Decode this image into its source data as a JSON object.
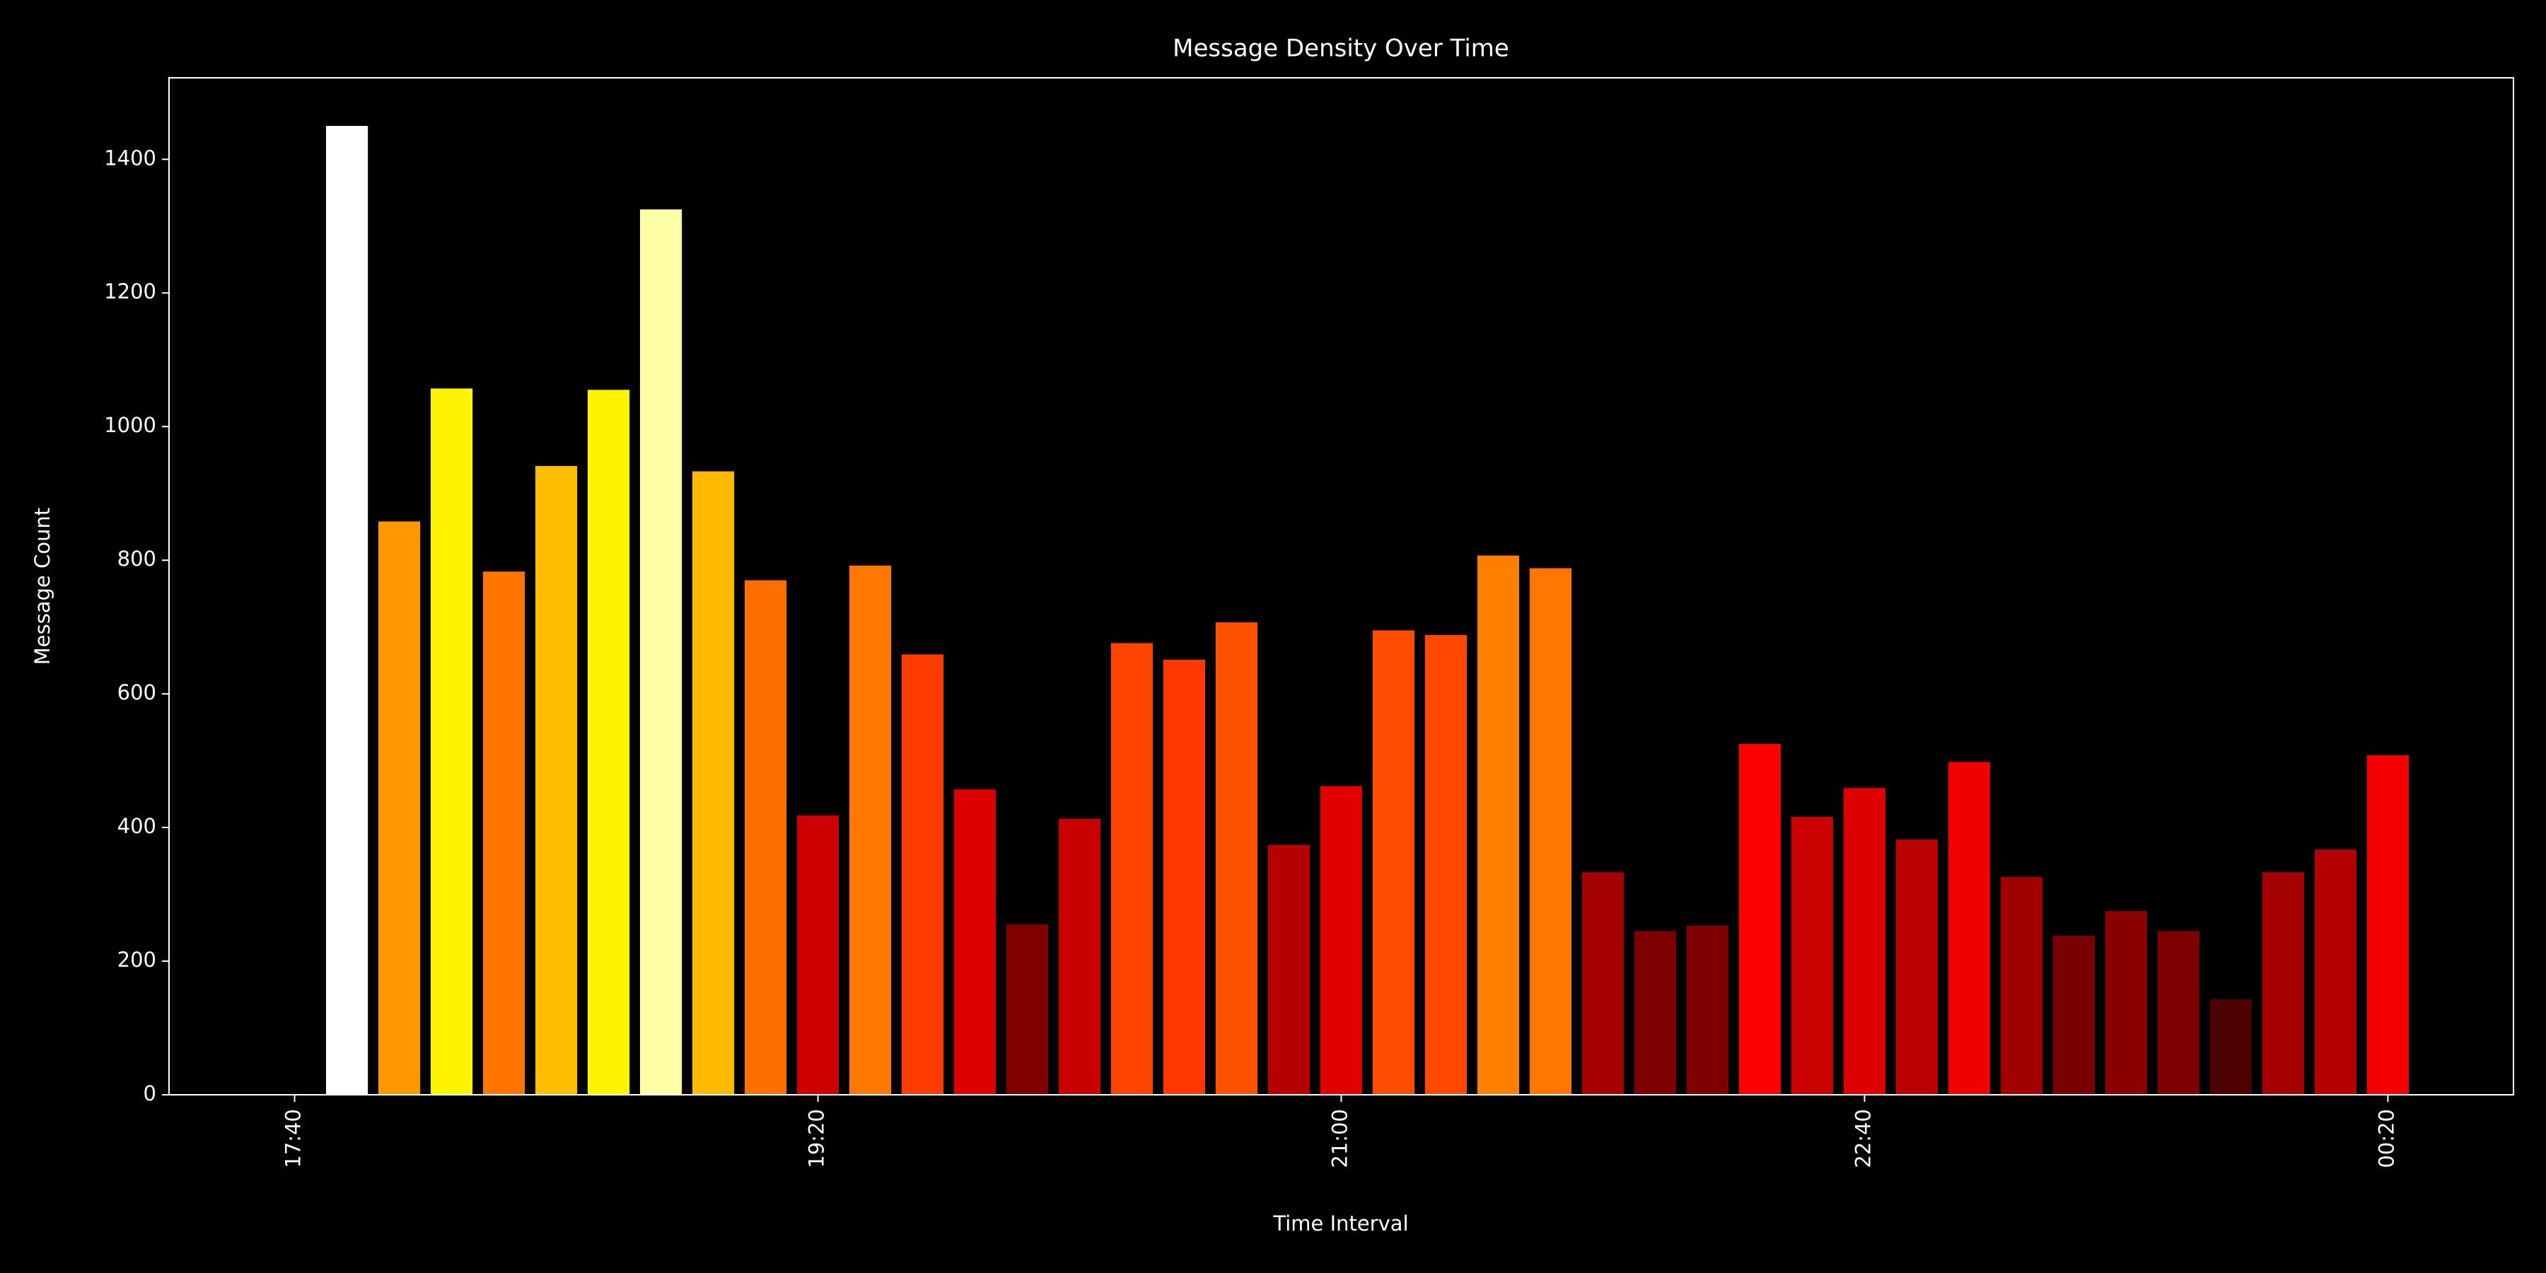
{
  "chart_data": {
    "type": "bar",
    "title": "Message Density Over Time",
    "x_label": "Time Interval",
    "y_label": "Message Count",
    "x": [
      "17:50",
      "18:00",
      "18:10",
      "18:20",
      "18:30",
      "18:40",
      "18:50",
      "19:00",
      "19:10",
      "19:20",
      "19:30",
      "19:40",
      "19:50",
      "20:00",
      "20:10",
      "20:20",
      "20:30",
      "20:40",
      "20:50",
      "21:00",
      "21:10",
      "21:20",
      "21:30",
      "21:40",
      "21:50",
      "22:00",
      "22:10",
      "22:20",
      "22:30",
      "22:40",
      "22:50",
      "23:00",
      "23:10",
      "23:20",
      "23:30",
      "23:40",
      "23:50",
      "00:00",
      "00:10",
      "00:20"
    ],
    "values": [
      1450,
      858,
      1057,
      783,
      941,
      1055,
      1325,
      933,
      770,
      418,
      792,
      659,
      457,
      255,
      413,
      676,
      651,
      707,
      374,
      462,
      695,
      688,
      807,
      788,
      333,
      245,
      253,
      525,
      416,
      459,
      382,
      498,
      326,
      238,
      275,
      245,
      143,
      333,
      367,
      508
    ],
    "colormap": "hot",
    "xlim": [
      "17:16",
      "00:44"
    ],
    "xticks": [
      "17:40",
      "19:20",
      "21:00",
      "22:40",
      "00:20"
    ],
    "ylim": [
      0,
      1522
    ],
    "yticks": [
      0,
      200,
      400,
      600,
      800,
      1000,
      1200,
      1400
    ]
  }
}
